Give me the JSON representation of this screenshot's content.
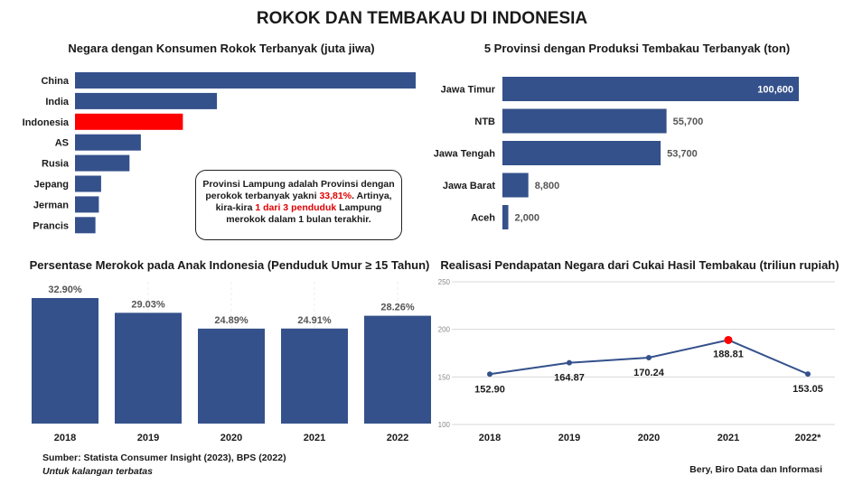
{
  "title": "ROKOK DAN TEMBAKAU DI INDONESIA",
  "colors": {
    "bar": "#34518b",
    "highlight": "#ff0000",
    "grid": "#d8d8d8"
  },
  "chart_data": [
    {
      "type": "bar",
      "orientation": "horizontal",
      "title": "Negara dengan Konsumen Rokok Terbanyak (juta jiwa)",
      "categories": [
        "China",
        "India",
        "Indonesia",
        "AS",
        "Rusia",
        "Jepang",
        "Jerman",
        "Prancis"
      ],
      "values": [
        300,
        125,
        95,
        58,
        48,
        23,
        21,
        18
      ],
      "highlight": "Indonesia"
    },
    {
      "type": "bar",
      "orientation": "horizontal",
      "title": "5 Provinsi dengan Produksi Tembakau Terbanyak (ton)",
      "categories": [
        "Jawa Timur",
        "NTB",
        "Jawa Tengah",
        "Jawa Barat",
        "Aceh"
      ],
      "values": [
        100600,
        55700,
        53700,
        8800,
        2000
      ],
      "value_labels": [
        "100,600",
        "55,700",
        "53,700",
        "8,800",
        "2,000"
      ]
    },
    {
      "type": "bar",
      "title": "Persentase Merokok pada Anak Indonesia (Penduduk Umur ≥ 15 Tahun)",
      "categories": [
        "2018",
        "2019",
        "2020",
        "2021",
        "2022"
      ],
      "values": [
        32.9,
        29.03,
        24.89,
        24.91,
        28.26
      ],
      "value_labels": [
        "32.90%",
        "29.03%",
        "24.89%",
        "24.91%",
        "28.26%"
      ]
    },
    {
      "type": "line",
      "title": "Realisasi Pendapatan Negara dari Cukai Hasil Tembakau (triliun rupiah)",
      "x": [
        "2018",
        "2019",
        "2020",
        "2021",
        "2022*"
      ],
      "values": [
        152.9,
        164.87,
        170.24,
        188.81,
        153.05
      ],
      "value_labels": [
        "152.90",
        "164.87",
        "170.24",
        "188.81",
        "153.05"
      ],
      "ylim": [
        100,
        250
      ],
      "yticks": [
        "100",
        "150",
        "200",
        "250"
      ],
      "highlight_index": 3
    }
  ],
  "note": {
    "line1": "Provinsi Lampung adalah Provinsi dengan",
    "line2a": "perokok terbanyak yakni ",
    "line2b": "33,81%",
    "line2c": ". Artinya,",
    "line3a": "kira-kira ",
    "line3b": "1 dari 3 penduduk",
    "line3c": " Lampung",
    "line4": "merokok dalam 1 bulan terakhir."
  },
  "footer": {
    "source": "Sumber: Statista Consumer Insight (2023), BPS (2022)",
    "limited": "Untuk kalangan terbatas",
    "author": "Bery, Biro Data dan Informasi"
  }
}
